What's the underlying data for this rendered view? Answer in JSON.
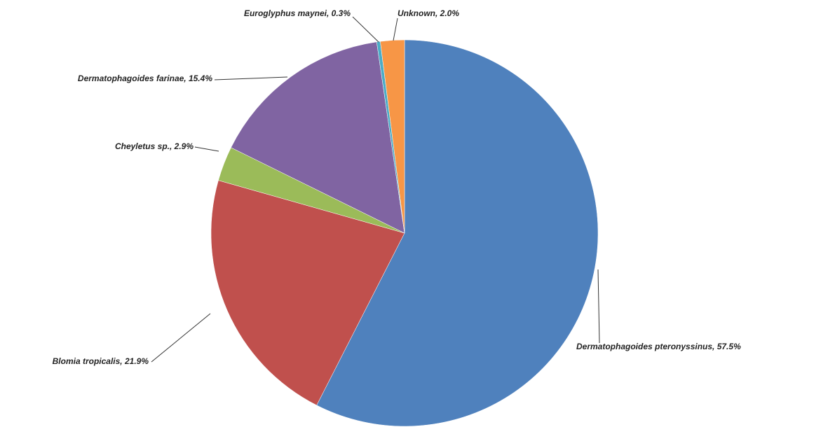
{
  "chart_data": {
    "type": "pie",
    "values": [
      57.5,
      21.9,
      2.9,
      15.4,
      0.3,
      2.0
    ],
    "value_labels": [
      "Dermatophagoides  pteronyssinus, 57.5%",
      "Blomia  tropicalis, 21.9%",
      "Cheyletus sp., 2.9%",
      "Dermatophagoides  farinae, 15.4%",
      "Euroglyphus maynei, 0.3%",
      "Unknown, 2.0%"
    ],
    "colors": [
      "#4f81bd",
      "#c0504d",
      "#9bbb59",
      "#8064a2",
      "#4bacc6",
      "#f79646"
    ]
  }
}
